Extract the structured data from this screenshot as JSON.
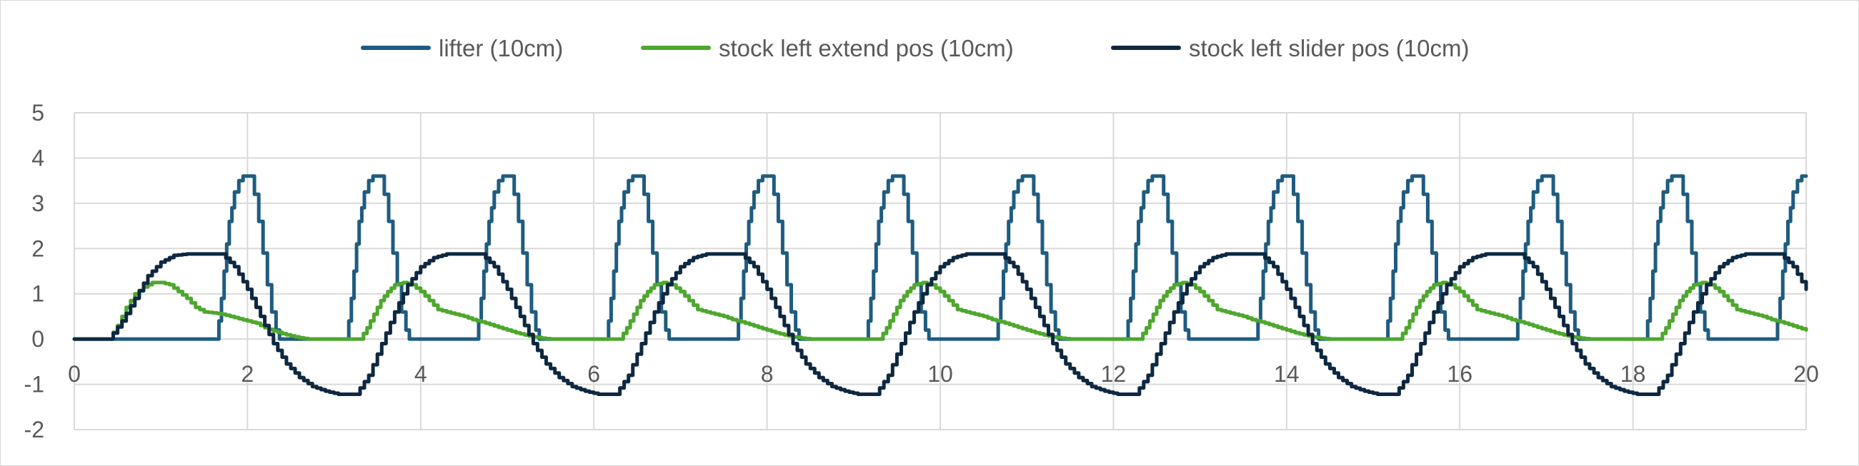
{
  "chart_data": {
    "type": "line",
    "title": "",
    "xlabel": "",
    "ylabel": "",
    "xlim": [
      0,
      20
    ],
    "ylim": [
      -2,
      5
    ],
    "x_ticks": [
      "0",
      "2",
      "4",
      "6",
      "8",
      "10",
      "12",
      "14",
      "16",
      "18",
      "20"
    ],
    "y_ticks": [
      "5",
      "4",
      "3",
      "2",
      "1",
      "0",
      "-1",
      "-2"
    ],
    "grid": true,
    "legend_position": "top",
    "period": 1.5,
    "series": [
      {
        "name": "lifter (10cm)",
        "color": "#1F5C80",
        "start_points": [
          [
            0,
            0
          ],
          [
            1.65,
            0
          ]
        ],
        "cycle_points": [
          [
            0.0,
            0.0
          ],
          [
            0.02,
            0.4
          ],
          [
            0.05,
            0.9
          ],
          [
            0.08,
            1.5
          ],
          [
            0.11,
            2.1
          ],
          [
            0.14,
            2.6
          ],
          [
            0.17,
            2.9
          ],
          [
            0.2,
            3.25
          ],
          [
            0.25,
            3.5
          ],
          [
            0.3,
            3.6
          ],
          [
            0.38,
            3.6
          ],
          [
            0.43,
            3.2
          ],
          [
            0.48,
            2.6
          ],
          [
            0.53,
            1.9
          ],
          [
            0.58,
            1.2
          ],
          [
            0.63,
            0.6
          ],
          [
            0.68,
            0.2
          ],
          [
            0.72,
            0.0
          ],
          [
            1.5,
            0.0
          ]
        ]
      },
      {
        "name": "stock left extend pos (10cm)",
        "color": "#4EA72E",
        "start_points": [
          [
            0,
            0
          ],
          [
            0.4,
            0
          ],
          [
            0.5,
            0.3
          ],
          [
            0.6,
            0.7
          ],
          [
            0.7,
            1.0
          ],
          [
            0.8,
            1.15
          ],
          [
            0.9,
            1.25
          ],
          [
            1.0,
            1.25
          ],
          [
            1.1,
            1.2
          ],
          [
            1.2,
            1.05
          ],
          [
            1.3,
            0.9
          ],
          [
            1.4,
            0.7
          ],
          [
            1.5,
            0.6
          ],
          [
            1.6,
            0.58
          ],
          [
            1.7,
            0.55
          ],
          [
            1.8,
            0.5
          ],
          [
            1.9,
            0.45
          ],
          [
            2.0,
            0.4
          ],
          [
            2.1,
            0.35
          ],
          [
            2.2,
            0.25
          ],
          [
            2.3,
            0.18
          ],
          [
            2.4,
            0.12
          ],
          [
            2.5,
            0.07
          ],
          [
            2.6,
            0.03
          ],
          [
            2.7,
            0.0
          ],
          [
            3.3,
            0.0
          ]
        ],
        "cycle_points": [
          [
            0.0,
            0.0
          ],
          [
            0.08,
            0.25
          ],
          [
            0.16,
            0.55
          ],
          [
            0.24,
            0.85
          ],
          [
            0.32,
            1.05
          ],
          [
            0.4,
            1.2
          ],
          [
            0.5,
            1.25
          ],
          [
            0.6,
            1.2
          ],
          [
            0.7,
            1.05
          ],
          [
            0.8,
            0.85
          ],
          [
            0.9,
            0.65
          ],
          [
            1.0,
            0.6
          ],
          [
            1.1,
            0.55
          ],
          [
            1.2,
            0.5
          ],
          [
            1.3,
            0.43
          ],
          [
            1.4,
            0.38
          ],
          [
            1.5,
            0.32
          ],
          [
            1.6,
            0.26
          ],
          [
            1.7,
            0.2
          ],
          [
            1.8,
            0.14
          ],
          [
            1.9,
            0.09
          ],
          [
            2.0,
            0.05
          ],
          [
            2.1,
            0.02
          ],
          [
            2.2,
            0.0
          ],
          [
            3.0,
            0.0
          ]
        ]
      },
      {
        "name": "stock left slider pos (10cm)",
        "color": "#0E2841",
        "start_points": [
          [
            0,
            0
          ],
          [
            0.4,
            0
          ],
          [
            0.55,
            0.4
          ],
          [
            0.7,
            0.9
          ],
          [
            0.85,
            1.4
          ],
          [
            1.0,
            1.7
          ],
          [
            1.15,
            1.85
          ],
          [
            1.3,
            1.88
          ],
          [
            1.7,
            1.88
          ],
          [
            1.85,
            1.6
          ],
          [
            2.0,
            1.1
          ],
          [
            2.15,
            0.5
          ],
          [
            2.3,
            -0.1
          ],
          [
            2.45,
            -0.55
          ],
          [
            2.6,
            -0.85
          ],
          [
            2.75,
            -1.05
          ],
          [
            2.9,
            -1.15
          ],
          [
            3.05,
            -1.22
          ],
          [
            3.25,
            -1.22
          ],
          [
            3.4,
            -0.8
          ],
          [
            3.55,
            -0.1
          ],
          [
            3.7,
            0.6
          ]
        ],
        "cycle_points": [
          [
            0.0,
            0.6
          ],
          [
            0.15,
            1.2
          ],
          [
            0.3,
            1.6
          ],
          [
            0.45,
            1.8
          ],
          [
            0.6,
            1.88
          ],
          [
            1.0,
            1.88
          ],
          [
            1.15,
            1.6
          ],
          [
            1.3,
            1.1
          ],
          [
            1.45,
            0.5
          ],
          [
            1.6,
            -0.1
          ],
          [
            1.75,
            -0.55
          ],
          [
            1.9,
            -0.85
          ],
          [
            2.05,
            -1.05
          ],
          [
            2.2,
            -1.15
          ],
          [
            2.35,
            -1.22
          ],
          [
            2.55,
            -1.22
          ],
          [
            2.7,
            -0.8
          ],
          [
            2.85,
            -0.1
          ],
          [
            3.0,
            0.6
          ]
        ]
      }
    ]
  }
}
